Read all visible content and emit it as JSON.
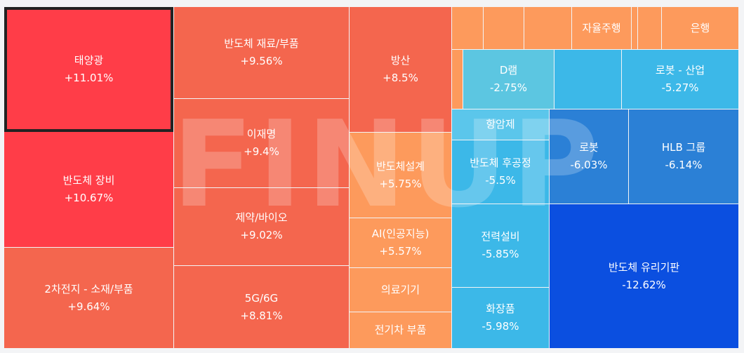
{
  "watermark": "FINUP",
  "chart_data": {
    "type": "treemap",
    "unit": "%",
    "selected": "태양광",
    "tiles": [
      {
        "name": "태양광",
        "change": "+11.01%",
        "value": 11.01,
        "color": "#ff3d48"
      },
      {
        "name": "반도체 장비",
        "change": "+10.67%",
        "value": 10.67,
        "color": "#ff3d48"
      },
      {
        "name": "2차전지 - 소재/부품",
        "change": "+9.64%",
        "value": 9.64,
        "color": "#f4664e"
      },
      {
        "name": "반도체 재료/부품",
        "change": "+9.56%",
        "value": 9.56,
        "color": "#f4664e"
      },
      {
        "name": "이재명",
        "change": "+9.4%",
        "value": 9.4,
        "color": "#f4664e"
      },
      {
        "name": "제약/바이오",
        "change": "+9.02%",
        "value": 9.02,
        "color": "#f4664e"
      },
      {
        "name": "5G/6G",
        "change": "+8.81%",
        "value": 8.81,
        "color": "#f4664e"
      },
      {
        "name": "방산",
        "change": "+8.5%",
        "value": 8.5,
        "color": "#f4664e"
      },
      {
        "name": "반도체설계",
        "change": "+5.75%",
        "value": 5.75,
        "color": "#fd9a5c"
      },
      {
        "name": "AI(인공지능)",
        "change": "+5.57%",
        "value": 5.57,
        "color": "#fd9a5c"
      },
      {
        "name": "의료기기",
        "change": "",
        "value": null,
        "color": "#fd9a5c"
      },
      {
        "name": "전기차 부품",
        "change": "",
        "value": null,
        "color": "#fd9a5c"
      },
      {
        "name": "",
        "change": "",
        "value": null,
        "color": "#fd9a5c"
      },
      {
        "name": "",
        "change": "",
        "value": null,
        "color": "#fd9a5c"
      },
      {
        "name": "",
        "change": "",
        "value": null,
        "color": "#fd9a5c"
      },
      {
        "name": "자율주행",
        "change": "",
        "value": null,
        "color": "#fd9a5c"
      },
      {
        "name": "",
        "change": "",
        "value": null,
        "color": "#fd9a5c"
      },
      {
        "name": "",
        "change": "",
        "value": null,
        "color": "#fd9a5c"
      },
      {
        "name": "은행",
        "change": "",
        "value": null,
        "color": "#fd9a5c"
      },
      {
        "name": "",
        "change": "",
        "value": null,
        "color": "#fd9a5c"
      },
      {
        "name": "D램",
        "change": "-2.75%",
        "value": -2.75,
        "color": "#5cc6e1"
      },
      {
        "name": "",
        "change": "",
        "value": null,
        "color": "#3cb8e8"
      },
      {
        "name": "로봇 - 산업",
        "change": "-5.27%",
        "value": -5.27,
        "color": "#3cb8e8"
      },
      {
        "name": "항암제",
        "change": "",
        "value": null,
        "color": "#5bc6eb"
      },
      {
        "name": "반도체 후공정",
        "change": "-5.5%",
        "value": -5.5,
        "color": "#3cb8e8"
      },
      {
        "name": "로봇",
        "change": "-6.03%",
        "value": -6.03,
        "color": "#2b80d6"
      },
      {
        "name": "HLB 그룹",
        "change": "-6.14%",
        "value": -6.14,
        "color": "#2b80d6"
      },
      {
        "name": "전력설비",
        "change": "-5.85%",
        "value": -5.85,
        "color": "#3cb8e8"
      },
      {
        "name": "화장품",
        "change": "-5.98%",
        "value": -5.98,
        "color": "#3cb8e8"
      },
      {
        "name": "반도체 유리기판",
        "change": "-12.62%",
        "value": -12.62,
        "color": "#0b4fe0"
      }
    ]
  }
}
